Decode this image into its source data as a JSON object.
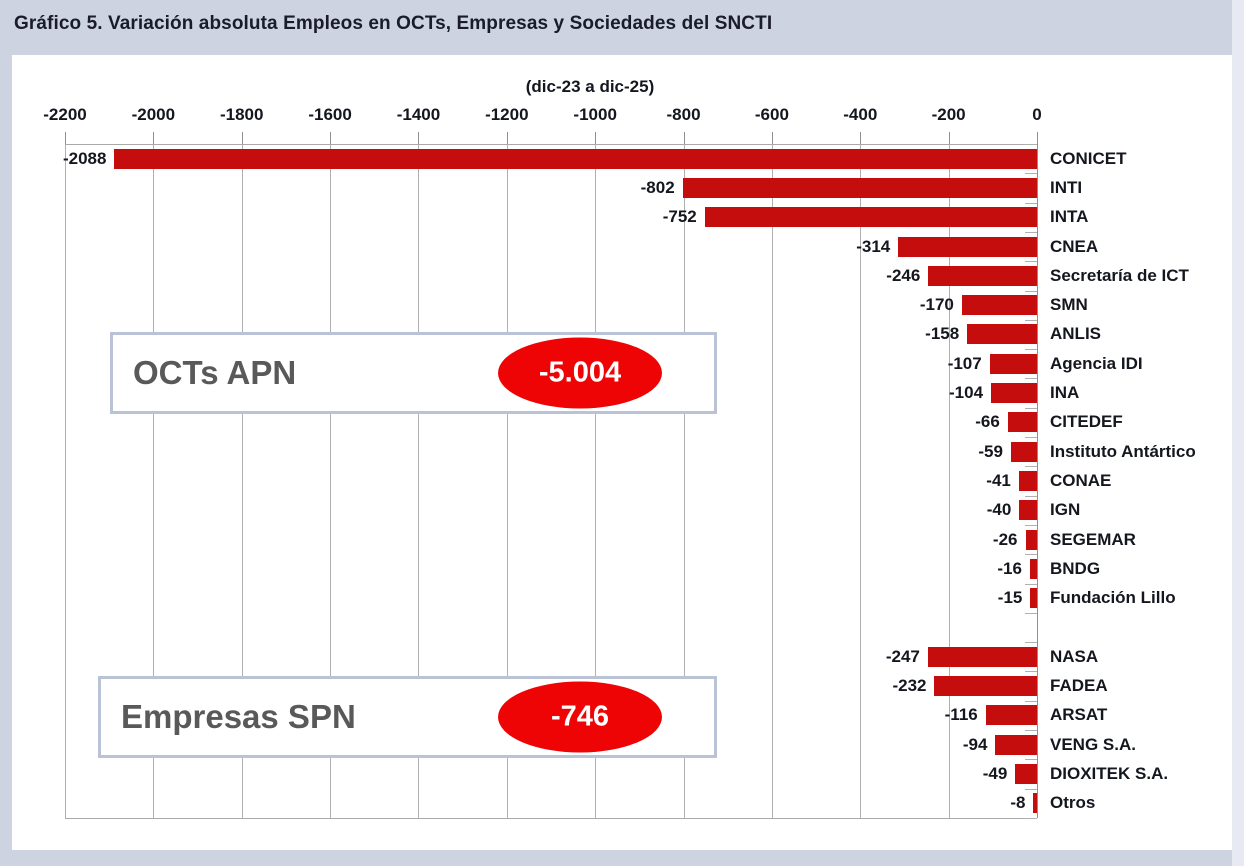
{
  "page": {
    "title": "Gráfico 5. Variación absoluta Empleos en OCTs, Empresas y Sociedades del SNCTI"
  },
  "chart_data": {
    "type": "bar",
    "orientation": "horizontal",
    "title": "(dic-23 a dic-25)",
    "xlim": [
      -2200,
      0
    ],
    "axis_ticks": [
      -2200,
      -2000,
      -1800,
      -1600,
      -1400,
      -1200,
      -1000,
      -800,
      -600,
      -400,
      -200,
      0
    ],
    "grid": "vertical",
    "legend": "none",
    "colors": {
      "bar": "#c50d0d",
      "ellipse": "#ee0404",
      "group_label_text": "#595959",
      "page_background": "#cdd3e1"
    },
    "groups": [
      {
        "label": "OCTs APN",
        "total_label": "-5.004",
        "items": [
          {
            "name": "CONICET",
            "value": -2088
          },
          {
            "name": "INTI",
            "value": -802
          },
          {
            "name": "INTA",
            "value": -752
          },
          {
            "name": "CNEA",
            "value": -314
          },
          {
            "name": "Secretaría de ICT",
            "value": -246
          },
          {
            "name": "SMN",
            "value": -170
          },
          {
            "name": "ANLIS",
            "value": -158
          },
          {
            "name": "Agencia IDI",
            "value": -107
          },
          {
            "name": "INA",
            "value": -104
          },
          {
            "name": "CITEDEF",
            "value": -66
          },
          {
            "name": "Instituto Antártico",
            "value": -59
          },
          {
            "name": "CONAE",
            "value": -41
          },
          {
            "name": "IGN",
            "value": -40
          },
          {
            "name": "SEGEMAR",
            "value": -26
          },
          {
            "name": "BNDG",
            "value": -16
          },
          {
            "name": "Fundación Lillo",
            "value": -15
          }
        ]
      },
      {
        "label": "Empresas SPN",
        "total_label": "-746",
        "items": [
          {
            "name": "NASA",
            "value": -247
          },
          {
            "name": "FADEA",
            "value": -232
          },
          {
            "name": "ARSAT",
            "value": -116
          },
          {
            "name": "VENG S.A.",
            "value": -94
          },
          {
            "name": "DIOXITEK S.A.",
            "value": -49
          },
          {
            "name": "Otros",
            "value": -8
          }
        ]
      }
    ]
  }
}
